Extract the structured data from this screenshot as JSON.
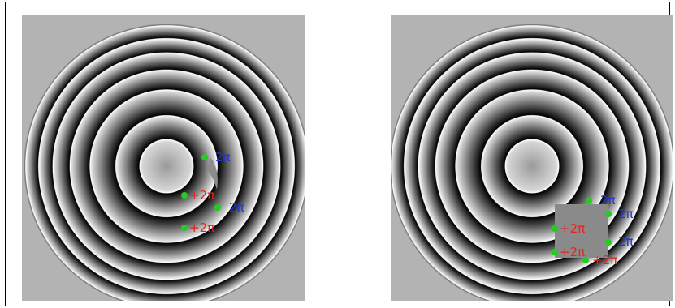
{
  "figure": {
    "panels": [
      {
        "id": "left",
        "markers": [
          {
            "label": "2π",
            "color": "blue"
          },
          {
            "label": "+2π",
            "color": "red"
          },
          {
            "label": "2π",
            "color": "blue"
          },
          {
            "label": "+2π",
            "color": "red"
          }
        ]
      },
      {
        "id": "right",
        "markers": [
          {
            "label": "2π",
            "color": "blue"
          },
          {
            "label": "2π",
            "color": "blue"
          },
          {
            "label": "+2π",
            "color": "red"
          },
          {
            "label": "2π",
            "color": "blue"
          },
          {
            "label": "+2π",
            "color": "red"
          },
          {
            "label": "+2π",
            "color": "red"
          }
        ]
      }
    ]
  },
  "colors": {
    "background": "#b3b3b3",
    "marker_dot": "#22cc22",
    "label_red": "#e8221d",
    "label_blue": "#2036d8",
    "patch": "#8a8a8a",
    "frame": "#000000"
  }
}
